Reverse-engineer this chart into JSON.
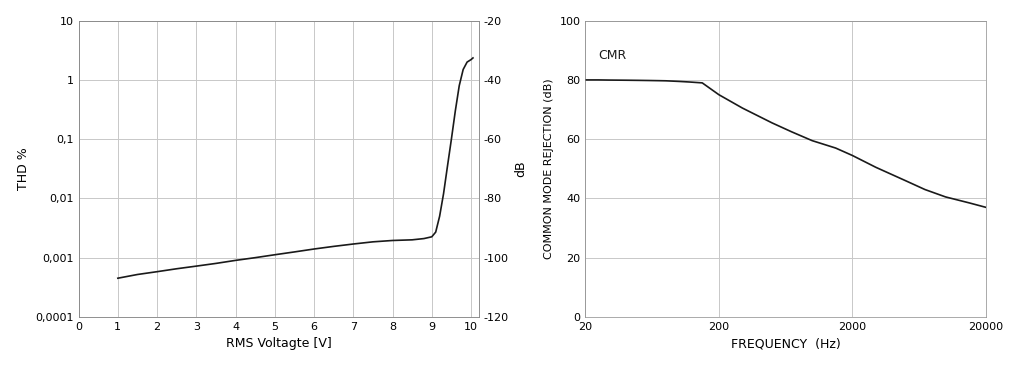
{
  "thd_x": [
    1.0,
    1.5,
    2.0,
    2.5,
    3.0,
    3.5,
    4.0,
    4.5,
    5.0,
    5.5,
    6.0,
    6.5,
    7.0,
    7.5,
    8.0,
    8.5,
    8.8,
    9.0,
    9.1,
    9.2,
    9.3,
    9.4,
    9.5,
    9.6,
    9.7,
    9.8,
    9.9,
    10.0,
    10.05
  ],
  "thd_y": [
    0.00045,
    0.00052,
    0.00058,
    0.00065,
    0.00072,
    0.0008,
    0.0009,
    0.001,
    0.00112,
    0.00125,
    0.0014,
    0.00155,
    0.0017,
    0.00185,
    0.00195,
    0.002,
    0.0021,
    0.00225,
    0.0027,
    0.005,
    0.012,
    0.035,
    0.1,
    0.3,
    0.8,
    1.5,
    2.0,
    2.2,
    2.35
  ],
  "cmr_x": [
    20,
    25,
    30,
    40,
    50,
    60,
    70,
    80,
    100,
    120,
    150,
    200,
    300,
    500,
    700,
    1000,
    1500,
    2000,
    3000,
    5000,
    7000,
    10000,
    15000,
    20000
  ],
  "cmr_y": [
    80.0,
    80.0,
    79.95,
    79.9,
    79.85,
    79.8,
    79.75,
    79.7,
    79.5,
    79.3,
    79.0,
    75.0,
    70.5,
    65.5,
    62.5,
    59.5,
    57.0,
    54.5,
    50.5,
    46.0,
    43.0,
    40.5,
    38.5,
    37.0
  ],
  "thd_xlim": [
    0,
    10.2
  ],
  "thd_xticks": [
    0,
    1,
    2,
    3,
    4,
    5,
    6,
    7,
    8,
    9,
    10
  ],
  "thd_ylim": [
    0.0001,
    10
  ],
  "thd_yticks_left": [
    0.0001,
    0.001,
    0.01,
    0.1,
    1,
    10
  ],
  "thd_ytick_labels_left": [
    "0,0001",
    "0,001",
    "0,01",
    "0,1",
    "1",
    "10"
  ],
  "thd_yticks_right": [
    -120,
    -100,
    -80,
    -60,
    -40,
    -20
  ],
  "thd_ylabel_left": "THD %",
  "thd_ylabel_right": "dB",
  "thd_xlabel": "RMS Voltagte [V]",
  "cmr_xlim": [
    20,
    20000
  ],
  "cmr_ylim": [
    0,
    100
  ],
  "cmr_yticks": [
    0,
    20,
    40,
    60,
    80,
    100
  ],
  "cmr_xtick_labels": [
    "20",
    "200",
    "2000",
    "20000"
  ],
  "cmr_ylabel": "COMMON MODE REJECTION (dB)",
  "cmr_xlabel": "FREQUENCY  (Hz)",
  "cmr_label": "CMR",
  "line_color": "#1a1a1a",
  "grid_color": "#c8c8c8",
  "bg_color": "#ffffff",
  "font_color": "#444444",
  "font_size_tick": 8,
  "font_size_label": 9
}
